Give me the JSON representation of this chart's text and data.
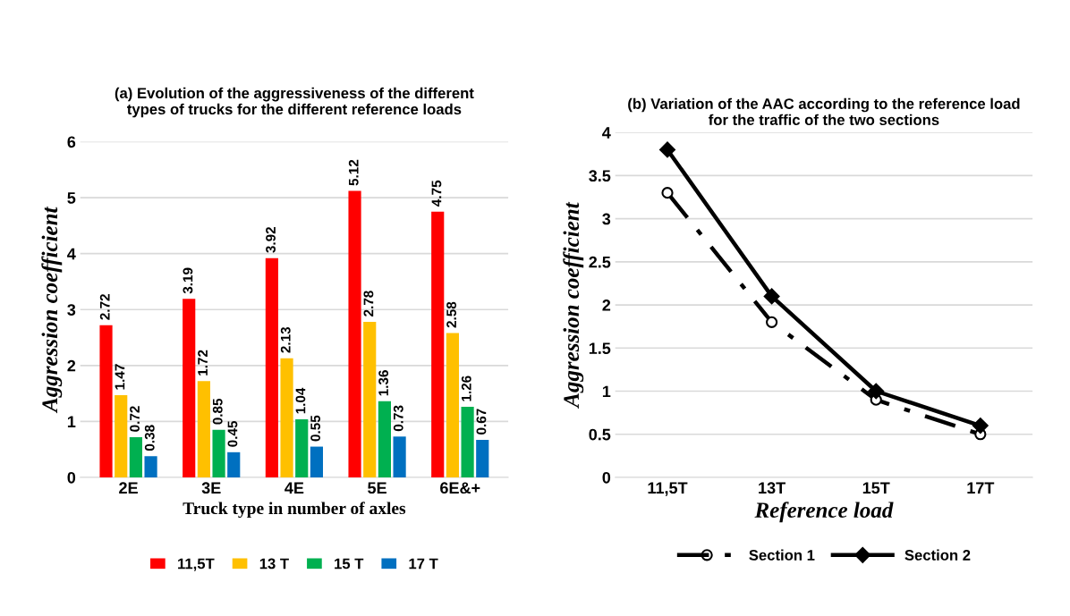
{
  "chart_data": [
    {
      "type": "bar",
      "title": "(a) Evolution of the aggressiveness of the different\ntypes of trucks for the different reference loads",
      "xlabel": "Truck type in number of axles",
      "ylabel": "Aggression coefficient",
      "categories": [
        "2E",
        "3E",
        "4E",
        "5E",
        "6E&+"
      ],
      "series": [
        {
          "name": "11,5T",
          "color": "#ff0000",
          "values": [
            2.72,
            3.19,
            3.92,
            5.12,
            4.75
          ]
        },
        {
          "name": "13 T",
          "color": "#ffc000",
          "values": [
            1.47,
            1.72,
            2.13,
            2.78,
            2.58
          ]
        },
        {
          "name": "15 T",
          "color": "#00b050",
          "values": [
            0.72,
            0.85,
            1.04,
            1.36,
            1.26
          ]
        },
        {
          "name": "17 T",
          "color": "#0070c0",
          "values": [
            0.38,
            0.45,
            0.55,
            0.73,
            0.67
          ]
        }
      ],
      "ylim": [
        0,
        6
      ],
      "yticks": [
        0,
        1,
        2,
        3,
        4,
        5,
        6
      ],
      "grid": "y",
      "legend": "bottom",
      "data_labels": true
    },
    {
      "type": "line",
      "title": "(b) Variation of the AAC according to the reference load\nfor the traffic of the two sections",
      "xlabel": "Reference load",
      "ylabel": "Aggression coefficient",
      "categories": [
        "11,5T",
        "13T",
        "15T",
        "17T"
      ],
      "series": [
        {
          "name": "Section 1",
          "color": "#000000",
          "values": [
            3.3,
            1.8,
            0.9,
            0.5
          ],
          "marker": "circle",
          "line_style": "dashed"
        },
        {
          "name": "Section 2",
          "color": "#000000",
          "values": [
            3.8,
            2.1,
            1.0,
            0.6
          ],
          "marker": "diamond",
          "line_style": "solid"
        }
      ],
      "ylim": [
        0,
        4
      ],
      "yticks": [
        0,
        0.5,
        1,
        1.5,
        2,
        2.5,
        3,
        3.5,
        4
      ],
      "grid": "y",
      "legend": "bottom"
    }
  ]
}
